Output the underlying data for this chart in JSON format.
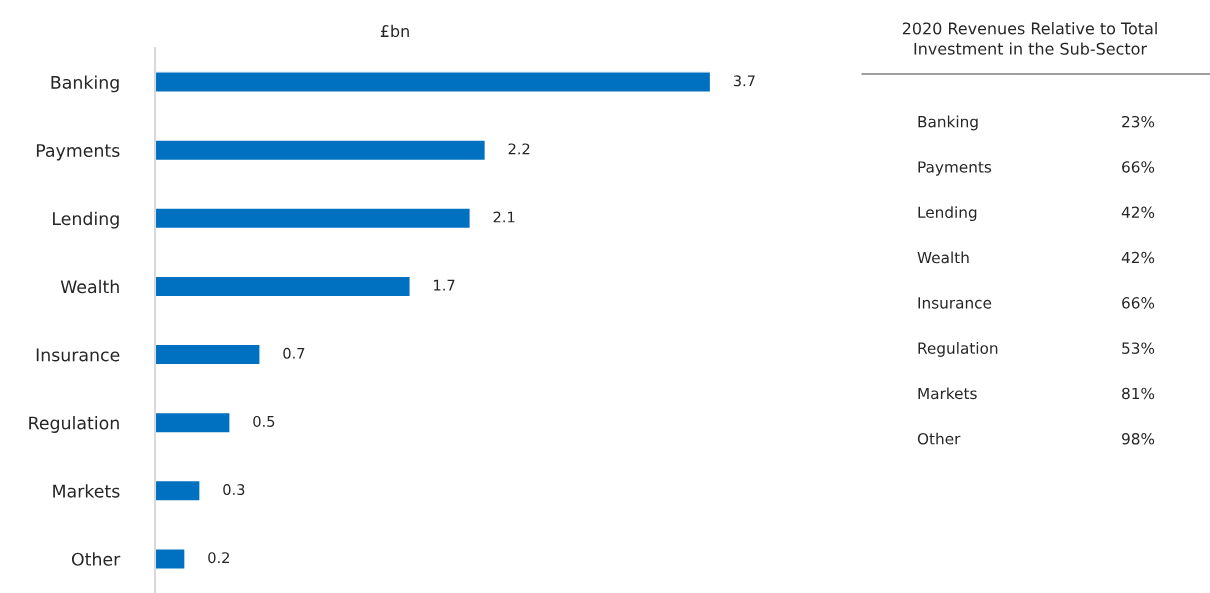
{
  "chart_data": [
    {
      "type": "bar",
      "orientation": "horizontal",
      "title": "£bn",
      "categories": [
        "Banking",
        "Payments",
        "Lending",
        "Wealth",
        "Insurance",
        "Regulation",
        "Markets",
        "Other"
      ],
      "values": [
        3.7,
        2.2,
        2.1,
        1.7,
        0.7,
        0.5,
        0.3,
        0.2
      ],
      "color": "#0070c0",
      "data_labels": true,
      "tick_labels": "y",
      "grid": false,
      "legend": false
    },
    {
      "type": "other",
      "title": "2020 Revenues Relative to Total\nInvestment in the Sub-Sector",
      "categories": [
        "Banking",
        "Payments",
        "Lending",
        "Wealth",
        "Insurance",
        "Regulation",
        "Markets",
        "Other"
      ],
      "values": [
        23,
        66,
        42,
        42,
        66,
        53,
        81,
        98
      ],
      "value_labels": [
        "23%",
        "66%",
        "42%",
        "42%",
        "66%",
        "53%",
        "81%",
        "98%"
      ]
    }
  ]
}
